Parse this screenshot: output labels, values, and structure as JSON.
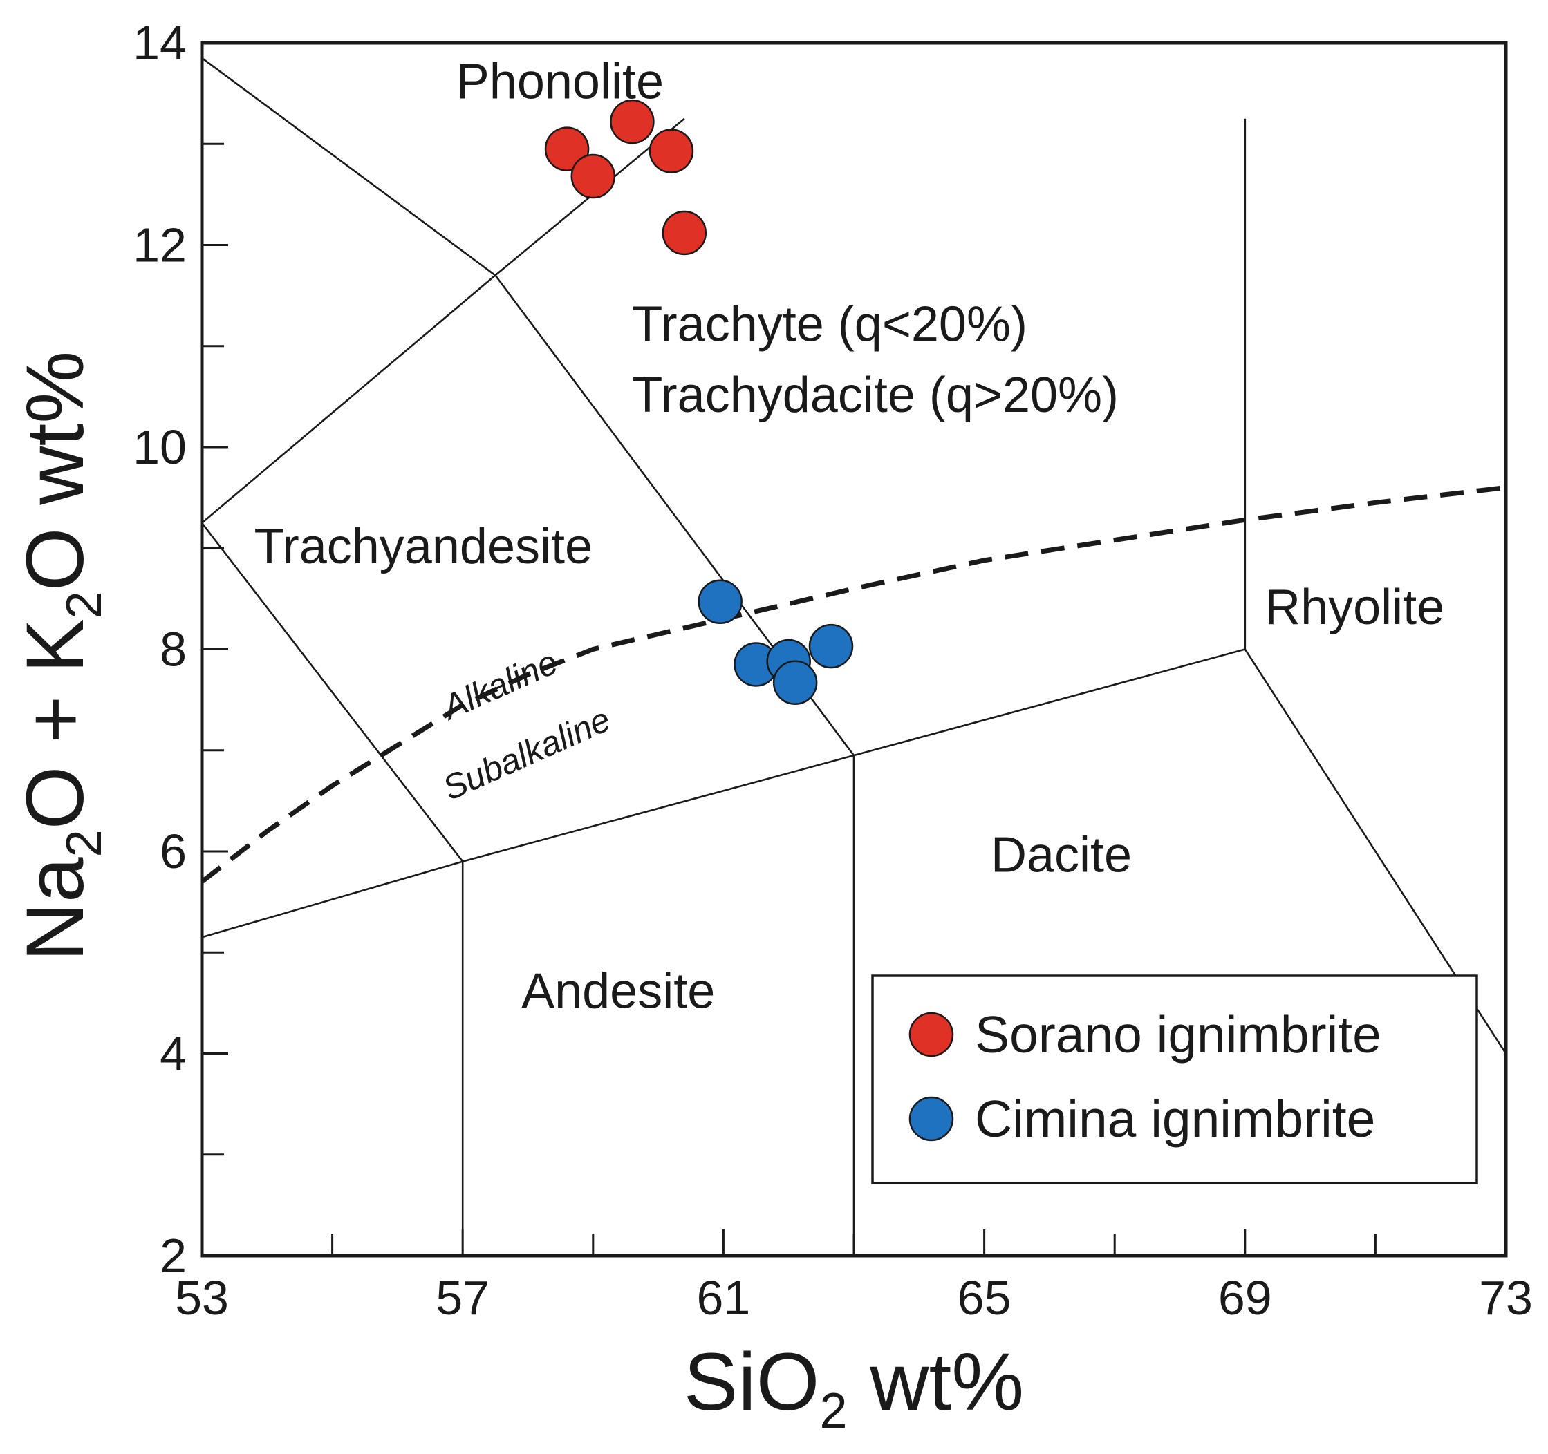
{
  "chart_data": {
    "type": "scatter",
    "title": "",
    "xlabel": {
      "main": "SiO",
      "sub": "2",
      "suffix": " wt%"
    },
    "ylabel": {
      "p1": "Na",
      "s1": "2",
      "p2": "O + K",
      "s2": "2",
      "p3": "O wt%"
    },
    "xlim": [
      53,
      73
    ],
    "ylim": [
      2,
      14
    ],
    "x_ticks": [
      53,
      57,
      61,
      65,
      69,
      73
    ],
    "y_ticks": [
      2,
      4,
      6,
      8,
      10,
      12,
      14
    ],
    "x_minor_step": 2,
    "y_minor_step": 1,
    "series": [
      {
        "name": "Sorano ignimbrite",
        "color": "#e03127",
        "points": [
          {
            "x": 58.6,
            "y": 12.95
          },
          {
            "x": 59.0,
            "y": 12.68
          },
          {
            "x": 59.6,
            "y": 13.22
          },
          {
            "x": 60.2,
            "y": 12.93
          },
          {
            "x": 60.4,
            "y": 12.12
          }
        ]
      },
      {
        "name": "Cimina ignimbrite",
        "color": "#1e72c0",
        "points": [
          {
            "x": 60.95,
            "y": 8.47
          },
          {
            "x": 61.5,
            "y": 7.85
          },
          {
            "x": 62.0,
            "y": 7.88
          },
          {
            "x": 62.1,
            "y": 7.67
          },
          {
            "x": 62.65,
            "y": 8.03
          }
        ]
      }
    ],
    "boundaries": [
      [
        [
          53,
          13.85
        ],
        [
          57.5,
          11.7
        ],
        [
          63,
          6.95
        ],
        [
          69,
          8.0
        ],
        [
          73,
          4.0
        ]
      ],
      [
        [
          53,
          9.25
        ],
        [
          57,
          5.9
        ],
        [
          63,
          6.95
        ]
      ],
      [
        [
          53,
          5.15
        ],
        [
          57,
          5.9
        ]
      ],
      [
        [
          57,
          5.9
        ],
        [
          57,
          2
        ]
      ],
      [
        [
          63,
          6.95
        ],
        [
          63,
          2
        ]
      ],
      [
        [
          53,
          9.25
        ],
        [
          57.5,
          11.7
        ],
        [
          60.4,
          13.25
        ]
      ],
      [
        [
          69,
          8.0
        ],
        [
          69,
          13.25
        ]
      ]
    ],
    "divider": {
      "name": "Alkaline / Subalkaline boundary",
      "points": [
        [
          53,
          5.7
        ],
        [
          54,
          6.2
        ],
        [
          55,
          6.65
        ],
        [
          56,
          7.05
        ],
        [
          57,
          7.45
        ],
        [
          58,
          7.75
        ],
        [
          59,
          8.0
        ],
        [
          60,
          8.15
        ],
        [
          61,
          8.3
        ],
        [
          63,
          8.6
        ],
        [
          65,
          8.88
        ],
        [
          67,
          9.08
        ],
        [
          69,
          9.28
        ],
        [
          71,
          9.45
        ],
        [
          73,
          9.6
        ]
      ]
    },
    "regions": [
      {
        "key": "phonolite",
        "label": "Phonolite",
        "x": 56.9,
        "y": 13.45
      },
      {
        "key": "trachyte",
        "label": "Trachyte (q<20%)",
        "x": 59.6,
        "y": 11.05
      },
      {
        "key": "trachydacite",
        "label": "Trachydacite (q>20%)",
        "x": 59.6,
        "y": 10.35
      },
      {
        "key": "trachyandesite",
        "label": "Trachyandesite",
        "x": 53.8,
        "y": 8.85
      },
      {
        "key": "rhyolite",
        "label": "Rhyolite",
        "x": 69.3,
        "y": 8.25
      },
      {
        "key": "dacite",
        "label": "Dacite",
        "x": 65.1,
        "y": 5.8
      },
      {
        "key": "andesite",
        "label": "Andesite",
        "x": 57.9,
        "y": 4.45
      }
    ],
    "series_labels": [
      {
        "key": "alkaline",
        "label": "Alkaline",
        "x": 56.8,
        "y": 7.3,
        "rotation": -24
      },
      {
        "key": "subalkaline",
        "label": "Subalkaline",
        "x": 56.8,
        "y": 6.5,
        "rotation": -24
      }
    ],
    "legend": {
      "position": "bottom-right"
    }
  }
}
